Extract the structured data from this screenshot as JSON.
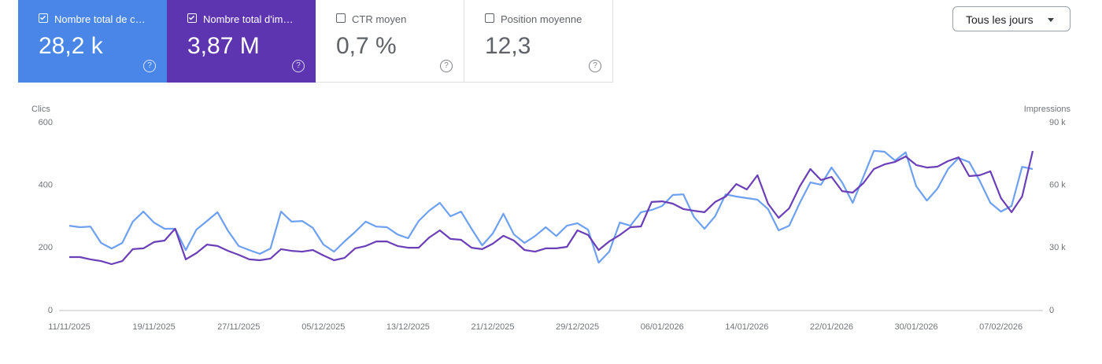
{
  "cards": [
    {
      "label": "Nombre total de c…",
      "value": "28,2 k",
      "checked": true,
      "color": "#4a86e8"
    },
    {
      "label": "Nombre total d'im…",
      "value": "3,87 M",
      "checked": true,
      "color": "#5e35b1"
    },
    {
      "label": "CTR moyen",
      "value": "0,7 %",
      "checked": false
    },
    {
      "label": "Position moyenne",
      "value": "12,3",
      "checked": false
    }
  ],
  "dropdown": "Tous les jours",
  "chart_data": {
    "type": "line",
    "y_label": "Clics",
    "y2_label": "Impressions",
    "categories": [
      "11/11/2025",
      null,
      null,
      null,
      null,
      null,
      null,
      null,
      "19/11/2025",
      null,
      null,
      null,
      null,
      null,
      null,
      null,
      "27/11/2025",
      null,
      null,
      null,
      null,
      null,
      null,
      null,
      "05/12/2025",
      null,
      null,
      null,
      null,
      null,
      null,
      null,
      "13/12/2025",
      null,
      null,
      null,
      null,
      null,
      null,
      null,
      "21/12/2025",
      null,
      null,
      null,
      null,
      null,
      null,
      null,
      "29/12/2025",
      null,
      null,
      null,
      null,
      null,
      null,
      null,
      "06/01/2026",
      null,
      null,
      null,
      null,
      null,
      null,
      null,
      "14/01/2026",
      null,
      null,
      null,
      null,
      null,
      null,
      null,
      "22/01/2026",
      null,
      null,
      null,
      null,
      null,
      null,
      null,
      "30/01/2026",
      null,
      null,
      null,
      null,
      null,
      null,
      null,
      "07/02/2026",
      null,
      null,
      null
    ],
    "series": [
      {
        "color": "#6ea0f2",
        "axis": "y",
        "values": [
          271,
          266,
          268,
          216,
          198,
          216,
          284,
          316,
          281,
          261,
          261,
          193,
          258,
          286,
          314,
          254,
          206,
          193,
          181,
          198,
          316,
          284,
          286,
          264,
          211,
          188,
          221,
          251,
          284,
          268,
          266,
          243,
          231,
          286,
          319,
          344,
          301,
          316,
          261,
          208,
          246,
          309,
          243,
          216,
          238,
          266,
          238,
          271,
          279,
          258,
          153,
          188,
          281,
          271,
          314,
          321,
          334,
          369,
          371,
          299,
          261,
          301,
          371,
          364,
          359,
          354,
          324,
          256,
          271,
          344,
          409,
          402,
          457,
          409,
          344,
          427,
          510,
          507,
          479,
          505,
          397,
          351,
          389,
          452,
          487,
          474,
          414,
          344,
          316,
          334,
          459,
          452
        ]
      },
      {
        "color": "#6a3fb8",
        "axis": "y2",
        "values": [
          25600,
          25600,
          24500,
          23700,
          22200,
          23700,
          29400,
          29800,
          32800,
          33500,
          39200,
          24500,
          27500,
          31600,
          30900,
          28600,
          26700,
          24500,
          24100,
          24900,
          29400,
          28600,
          28200,
          29000,
          26400,
          24100,
          25200,
          29800,
          30900,
          33100,
          33100,
          30900,
          30100,
          30100,
          35000,
          38400,
          34300,
          33900,
          30100,
          29400,
          32000,
          35800,
          33500,
          29000,
          28200,
          29800,
          29800,
          30500,
          38400,
          36200,
          29000,
          33100,
          36200,
          39900,
          40300,
          52000,
          52300,
          51200,
          48600,
          47800,
          47100,
          52000,
          54600,
          60600,
          58000,
          64800,
          51200,
          44400,
          49000,
          59500,
          67800,
          62500,
          64000,
          57200,
          56500,
          61000,
          67800,
          70000,
          71200,
          73800,
          69700,
          68500,
          68900,
          71600,
          73400,
          64400,
          64800,
          66700,
          53900,
          47100,
          54600,
          76400
        ]
      }
    ],
    "ylim": [
      0,
      600
    ],
    "yticks": [
      0,
      200,
      400,
      600
    ],
    "y2lim": [
      0,
      90000
    ],
    "y2ticks": [
      0,
      {
        "value": 30000,
        "label": "30 k"
      },
      {
        "value": 60000,
        "label": "60 k"
      },
      {
        "value": 90000,
        "label": "90 k"
      }
    ],
    "grid": false
  }
}
